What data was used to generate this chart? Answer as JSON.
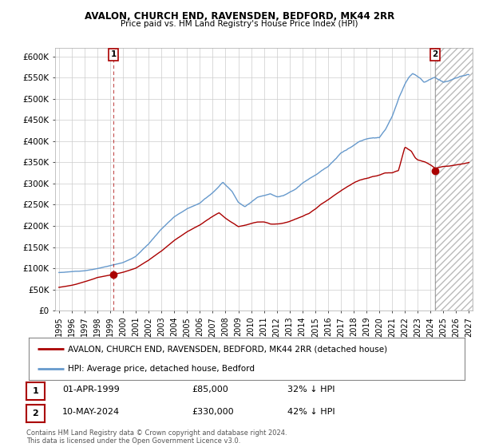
{
  "title": "AVALON, CHURCH END, RAVENSDEN, BEDFORD, MK44 2RR",
  "subtitle": "Price paid vs. HM Land Registry's House Price Index (HPI)",
  "ylabel_ticks": [
    "£0",
    "£50K",
    "£100K",
    "£150K",
    "£200K",
    "£250K",
    "£300K",
    "£350K",
    "£400K",
    "£450K",
    "£500K",
    "£550K",
    "£600K"
  ],
  "ylim": [
    0,
    620000
  ],
  "legend_line1": "AVALON, CHURCH END, RAVENSDEN, BEDFORD, MK44 2RR (detached house)",
  "legend_line2": "HPI: Average price, detached house, Bedford",
  "point1_date": "01-APR-1999",
  "point1_price": "£85,000",
  "point1_hpi": "32% ↓ HPI",
  "point2_date": "10-MAY-2024",
  "point2_price": "£330,000",
  "point2_hpi": "42% ↓ HPI",
  "footnote": "Contains HM Land Registry data © Crown copyright and database right 2024.\nThis data is licensed under the Open Government Licence v3.0.",
  "line_red_color": "#aa0000",
  "line_blue_color": "#6699cc",
  "grid_color": "#cccccc",
  "background_color": "#ffffff",
  "point1_x": 1999.25,
  "point2_x": 2024.37,
  "point1_y": 85000,
  "point2_y": 330000,
  "hatch_start": 2024.37,
  "xlim": [
    1994.7,
    2027.3
  ]
}
